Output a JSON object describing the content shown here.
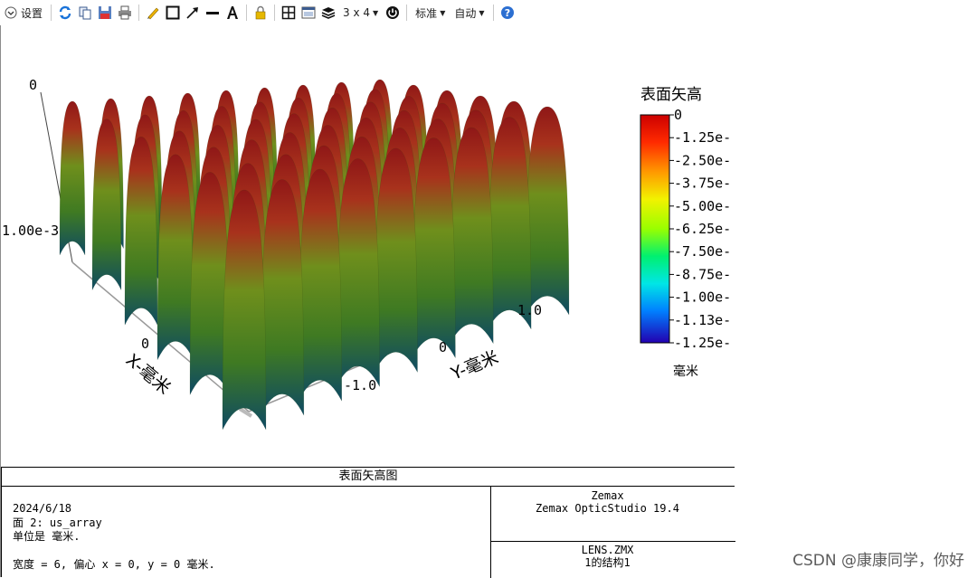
{
  "toolbar": {
    "settings_label": "设置",
    "layout_label": "3 x 4",
    "standard_label": "标准",
    "auto_label": "自动"
  },
  "chart_data": {
    "type": "surface",
    "title": "",
    "z_axis_label": "0",
    "z_axis_tick": "1.00e-3",
    "x_axis_label": "X-毫米",
    "x_ticks": [
      "0"
    ],
    "y_axis_label": "Y-毫米",
    "y_ticks": [
      "-1.0",
      "0",
      "1.0"
    ],
    "colorbar": {
      "title": "表面矢高",
      "unit": "毫米",
      "ticks": [
        "0",
        "-1.25e-",
        "-2.50e-",
        "-3.75e-",
        "-5.00e-",
        "-6.25e-",
        "-7.50e-",
        "-8.75e-",
        "-1.00e-",
        "-1.13e-",
        "-1.25e-"
      ],
      "colors": [
        "#cc0000",
        "#ff3300",
        "#ff9900",
        "#ffff00",
        "#66ff00",
        "#00ff66",
        "#00ffff",
        "#0099ff",
        "#3300ff",
        "#1a00b3"
      ]
    },
    "surface_colors": [
      "#9b1b1b",
      "#4f8a1b",
      "#0f4d66"
    ]
  },
  "info": {
    "title": "表面矢高图",
    "date": "2024/6/18",
    "surface": "面 2: us_array",
    "units": "单位是 毫米.",
    "width": "宽度 = 6, 偏心 x = 0, y = 0 毫米.",
    "company": "Zemax",
    "product": "Zemax OpticStudio 19.4",
    "file": "LENS.ZMX",
    "config": "1的结构1"
  },
  "watermark": "CSDN @康康同学，你好"
}
